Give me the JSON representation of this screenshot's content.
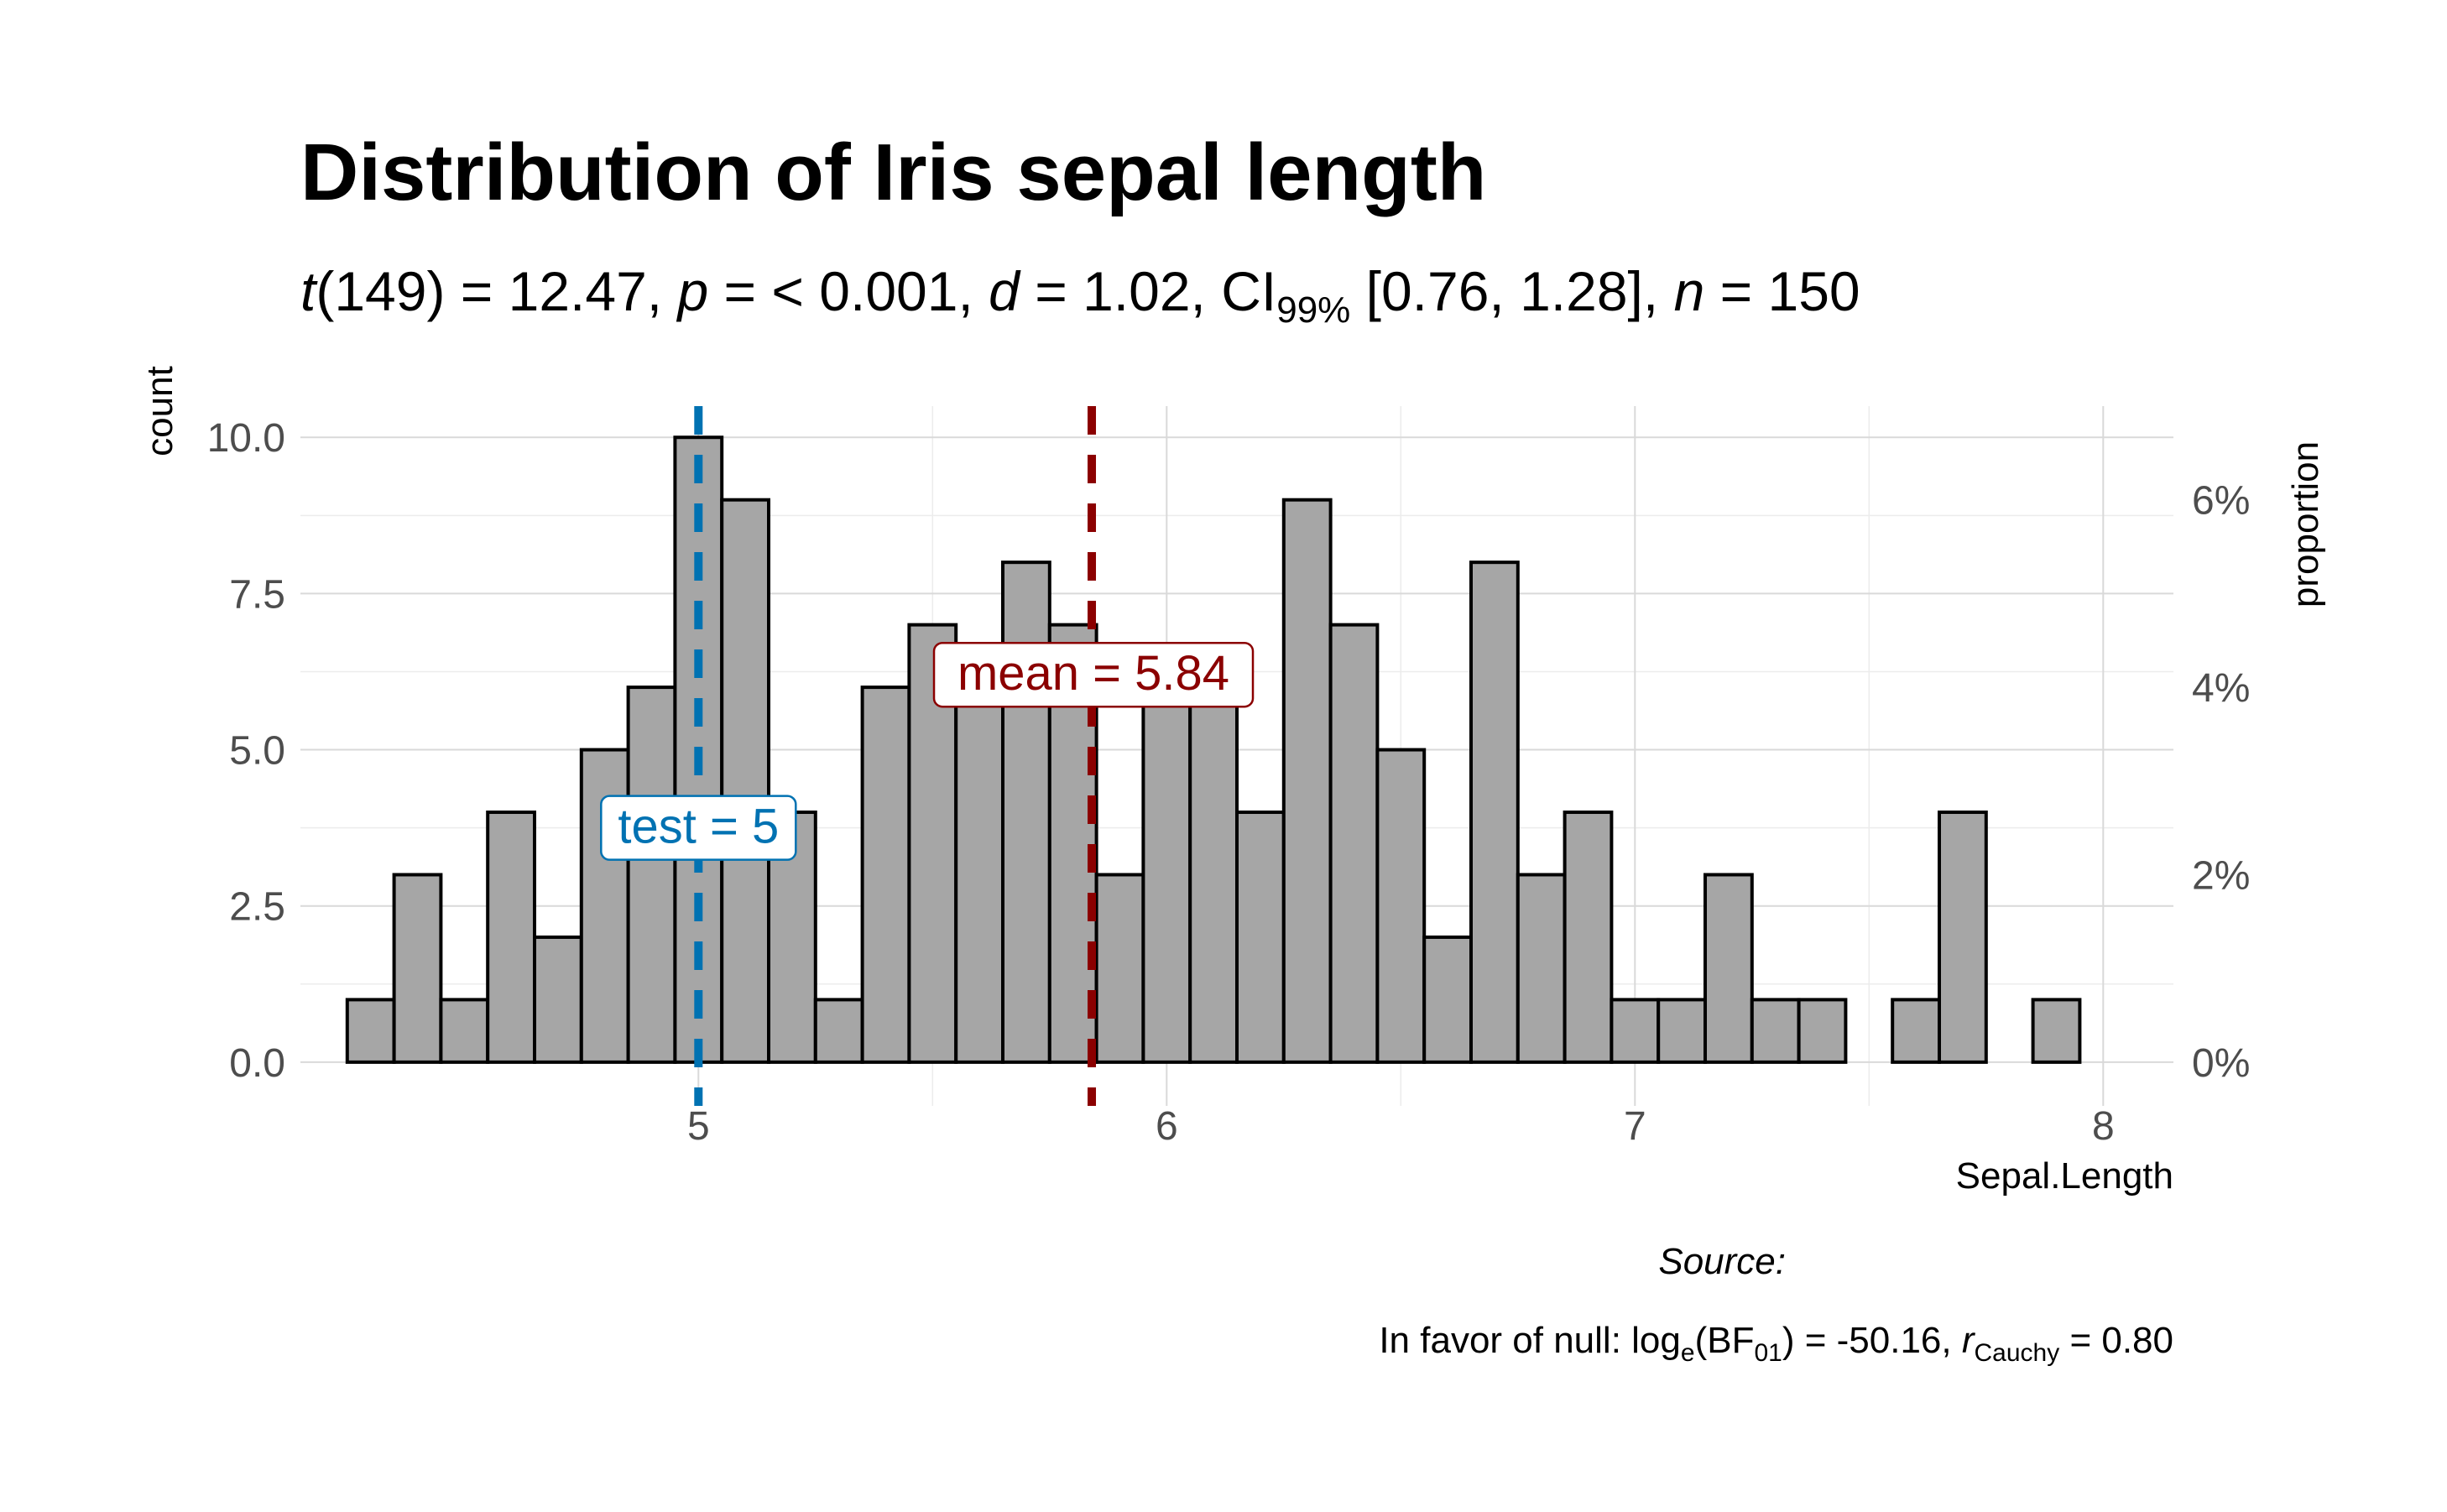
{
  "chart_data": {
    "type": "bar",
    "title": "Distribution of Iris sepal length",
    "subtitle": {
      "t_sym": "t",
      "t_df": "(149) = 12.47, ",
      "p_sym": "p",
      "p_val": " = < 0.001, ",
      "d_sym": "d",
      "d_val": " = 1.02, CI",
      "ci_sub": "99%",
      "ci_val": " [0.76, 1.28], ",
      "n_sym": "n",
      "n_val": " = 150"
    },
    "xlabel": "Sepal.Length",
    "ylabel": "count",
    "y2label": "proportion",
    "xlim": [
      4.15,
      8.15
    ],
    "ylim": [
      -0.7,
      10.5
    ],
    "x_ticks": [
      5,
      6,
      7,
      8
    ],
    "x_tick_labels": [
      "5",
      "6",
      "7",
      "8"
    ],
    "y_ticks": [
      0,
      2.5,
      5,
      7.5,
      10
    ],
    "y_tick_labels": [
      "0.0",
      "2.5",
      "5.0",
      "7.5",
      "10.0"
    ],
    "y2_ticks": [
      0,
      0.02,
      0.04,
      0.06
    ],
    "y2_tick_labels": [
      "0%",
      "2%",
      "4%",
      "6%"
    ],
    "bin_width": 0.1,
    "bin_starts": [
      4.25,
      4.35,
      4.45,
      4.55,
      4.65,
      4.75,
      4.85,
      4.95,
      5.05,
      5.15,
      5.25,
      5.35,
      5.45,
      5.55,
      5.65,
      5.75,
      5.85,
      5.95,
      6.05,
      6.15,
      6.25,
      6.35,
      6.45,
      6.55,
      6.65,
      6.75,
      6.85,
      6.95,
      7.05,
      7.15,
      7.25,
      7.35,
      7.45,
      7.55,
      7.65,
      7.75,
      7.85
    ],
    "counts": [
      1,
      3,
      1,
      4,
      2,
      5,
      6,
      10,
      9,
      4,
      1,
      6,
      7,
      6,
      8,
      7,
      3,
      6,
      6,
      4,
      9,
      7,
      5,
      2,
      8,
      3,
      4,
      1,
      1,
      3,
      1,
      1,
      0,
      1,
      4,
      0,
      1
    ],
    "total_n": 150,
    "test_value": 5,
    "test_label": "test = 5",
    "mean_value": 5.84,
    "mean_label": "mean = 5.84",
    "grid": true,
    "colors": {
      "bar_fill": "#a6a6a6",
      "bar_stroke": "#000000",
      "test_line": "#0072b2",
      "mean_line": "#8b0000",
      "grid": "#d9d9d9",
      "grid_minor": "#ececec"
    },
    "caption": {
      "source": "Source:",
      "bf_prefix": "In favor of null: log",
      "bf_sub_e": "e",
      "bf_mid": "(BF",
      "bf_sub_01": "01",
      "bf_val": ") = -50.16, ",
      "r_sym": "r",
      "r_sub": "Cauchy",
      "r_val": " = 0.80"
    }
  }
}
